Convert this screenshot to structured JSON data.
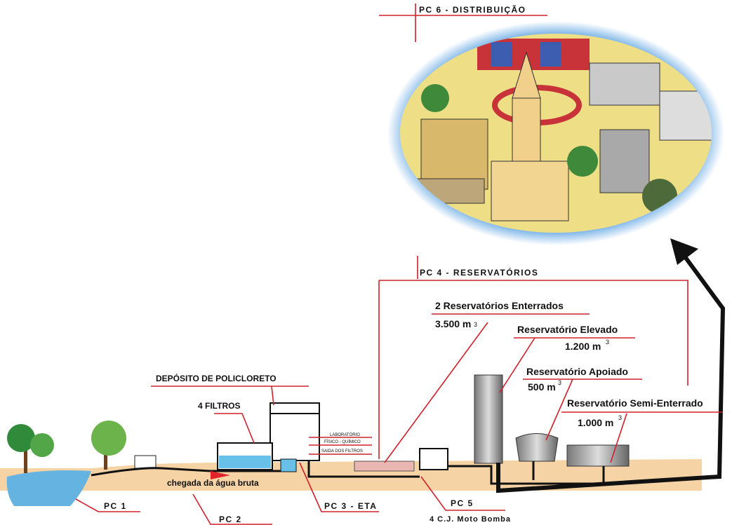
{
  "distribution": {
    "label": "PC 6 - DISTRIBUIÇÃO"
  },
  "reservoirs": {
    "label": "PC 4 - RESERVATÓRIOS",
    "items": [
      {
        "name": "2 Reservatórios Enterrados",
        "volume": "3.500 m",
        "exponent": "3"
      },
      {
        "name": "Reservatório Elevado",
        "volume": "1.200 m",
        "exponent": "3"
      },
      {
        "name": "Reservatório Apoiado",
        "volume": "500 m",
        "exponent": "3"
      },
      {
        "name": "Reservatório Semi-Enterrado",
        "volume": "1.000 m",
        "exponent": "3"
      }
    ]
  },
  "eta": {
    "label": "PC 3 - ETA",
    "deposit": "DEPÓSITO DE POLICLORETO",
    "filters": "4 FILTROS",
    "lab": [
      "LABORATÓRIO",
      "FÍSICO - QUÍMICO",
      "SAIDA DOS FILTROS"
    ]
  },
  "intake": {
    "label": "PC 1"
  },
  "raw_water": {
    "label": "PC 2",
    "arrival": "chegada da água bruta"
  },
  "pumping": {
    "label": "PC 5",
    "pumps": "4 C.J. Moto Bomba"
  }
}
